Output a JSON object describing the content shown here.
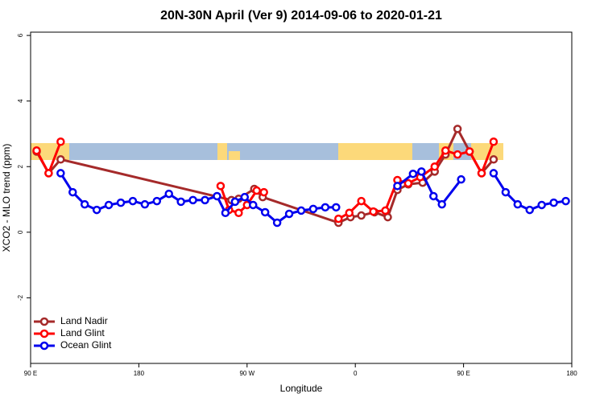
{
  "chart_data": {
    "type": "line",
    "title": "20N-30N April (Ver 9)   2014-09-06 to 2020-01-21",
    "x_label": "Longitude",
    "y_label": "XCO2 - MLO trend (ppm)",
    "xlim": [
      90,
      540
    ],
    "ylim": [
      -4,
      6.1
    ],
    "xticks": [
      {
        "value": 90,
        "label": "90 E"
      },
      180,
      {
        "value": 270,
        "label": "90 W"
      },
      {
        "value": 360,
        "label": "0"
      },
      {
        "value": 450,
        "label": "90 E"
      },
      180
    ],
    "yticks": [
      -2,
      0,
      2,
      4,
      6
    ],
    "legend": "bottomleft",
    "series": [
      {
        "name": "Land Nadir",
        "color": "#a52a2a",
        "x": [
          95,
          105,
          115,
          257,
          263,
          276,
          283,
          346,
          356,
          365,
          376,
          387,
          395,
          404,
          416,
          426,
          435,
          445,
          455,
          465,
          475
        ],
        "values": [
          2.46,
          1.8,
          2.22,
          0.98,
          1.02,
          1.32,
          1.07,
          0.29,
          0.46,
          0.51,
          0.61,
          0.46,
          1.29,
          1.46,
          1.51,
          1.85,
          2.37,
          3.15,
          2.46,
          1.8,
          2.22
        ]
      },
      {
        "name": "Land Glint",
        "color": "#ff0000",
        "x": [
          95,
          105,
          115,
          130,
          248,
          255,
          263,
          270,
          278,
          284,
          300,
          346,
          355,
          365,
          375,
          385,
          395,
          404,
          414,
          426,
          435,
          445,
          455,
          465,
          475
        ],
        "values": [
          2.49,
          1.8,
          2.76,
          null,
          1.41,
          0.68,
          0.59,
          0.83,
          1.27,
          1.22,
          null,
          0.41,
          0.59,
          0.95,
          0.63,
          0.66,
          1.59,
          1.49,
          1.68,
          2.0,
          2.49,
          2.37,
          2.46,
          1.8,
          2.76
        ]
      },
      {
        "name": "Ocean Glint",
        "color": "#0000ee",
        "x": [
          115,
          125,
          135,
          145,
          155,
          165,
          175,
          185,
          195,
          205,
          215,
          225,
          235,
          245,
          252,
          260,
          268,
          275,
          285,
          295,
          305,
          315,
          325,
          335,
          344,
          370,
          395,
          408,
          415,
          425,
          432,
          448,
          460,
          475,
          485,
          495,
          505,
          515,
          525,
          535
        ],
        "values": [
          1.8,
          1.22,
          0.85,
          0.68,
          0.83,
          0.9,
          0.95,
          0.85,
          0.95,
          1.17,
          0.93,
          0.98,
          0.98,
          1.1,
          0.59,
          0.93,
          1.07,
          0.83,
          0.61,
          0.29,
          0.56,
          0.66,
          0.71,
          0.76,
          0.76,
          null,
          1.41,
          1.78,
          1.85,
          1.1,
          0.85,
          1.61,
          null,
          1.8,
          1.22,
          0.85,
          0.68,
          0.83,
          0.9,
          0.95
        ]
      }
    ]
  }
}
